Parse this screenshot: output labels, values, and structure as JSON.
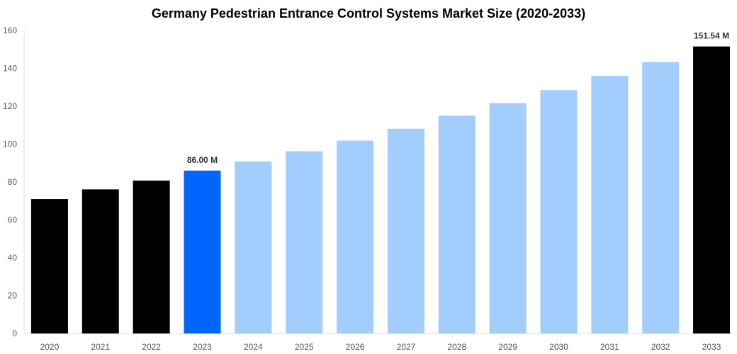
{
  "chart_data": {
    "type": "bar",
    "title": "Germany Pedestrian Entrance Control Systems Market Size (2020-2033)",
    "xlabel": "",
    "ylabel": "",
    "ylim": [
      0,
      160
    ],
    "yticks": [
      0,
      20,
      40,
      60,
      80,
      100,
      120,
      140,
      160
    ],
    "grid": false,
    "categories": [
      "2020",
      "2021",
      "2022",
      "2023",
      "2024",
      "2025",
      "2026",
      "2027",
      "2028",
      "2029",
      "2030",
      "2031",
      "2032",
      "2033"
    ],
    "values": [
      71.0,
      76.1,
      80.7,
      86.0,
      90.8,
      96.2,
      101.8,
      108.1,
      115.0,
      121.6,
      128.5,
      136.0,
      143.3,
      151.54
    ],
    "colors": [
      "#000000",
      "#000000",
      "#000000",
      "#0066ff",
      "#a3cdfd",
      "#a3cdfd",
      "#a3cdfd",
      "#a3cdfd",
      "#a3cdfd",
      "#a3cdfd",
      "#a3cdfd",
      "#a3cdfd",
      "#a3cdfd",
      "#000000"
    ],
    "data_labels": {
      "2023": "86.00 M",
      "2033": "151.54 M"
    }
  }
}
